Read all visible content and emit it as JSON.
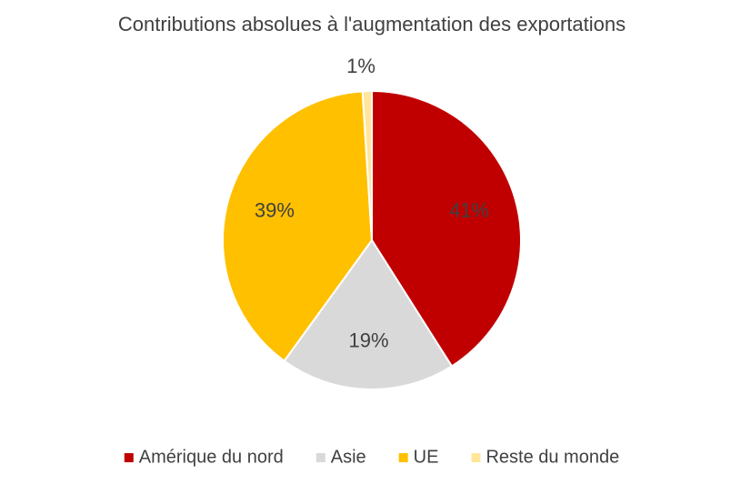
{
  "chart_data": {
    "type": "pie",
    "title": "Contributions absolues à l'augmentation des exportations",
    "categories": [
      "Amérique du nord",
      "Asie",
      "UE",
      "Reste du monde"
    ],
    "values": [
      41,
      19,
      39,
      1
    ],
    "value_labels": [
      "41%",
      "19%",
      "39%",
      "1%"
    ],
    "colors": [
      "#C00000",
      "#D9D9D9",
      "#FFC000",
      "#FFE699"
    ],
    "legend": "bottom"
  }
}
